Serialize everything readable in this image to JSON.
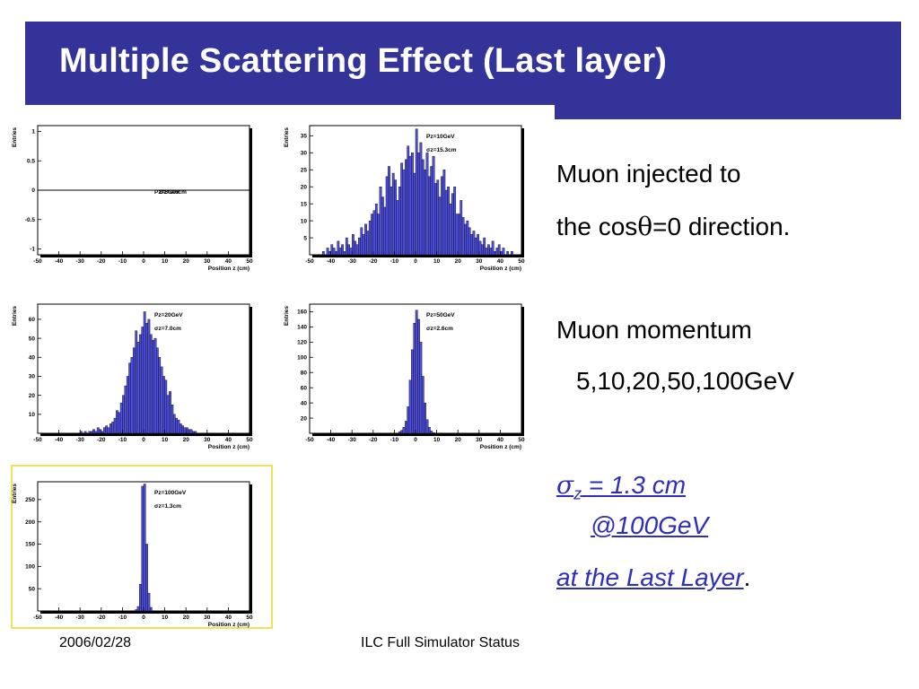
{
  "slide": {
    "title": "Multiple Scattering Effect (Last layer)",
    "accent_color": "#333399",
    "link_color": "#2e2eb8",
    "highlight_color": "#f2e25a",
    "footer_date": "2006/02/28",
    "footer_center": "ILC Full Simulator Status"
  },
  "text": {
    "line1": "Muon injected to",
    "line2_pre": "the cos",
    "line2_theta": "θ",
    "line2_post": "=0 direction.",
    "line3": "Muon momentum",
    "line4": "5,10,20,50,100GeV",
    "sigma_symbol": "σ",
    "sigma_sub": "z",
    "sigma_value": " = 1.3 cm",
    "sigma_at": "@100GeV",
    "last_layer": "at the Last Layer",
    "period": "."
  },
  "chart_data": [
    {
      "type": "bar",
      "xlabel": "Position z (cm)",
      "ylabel": "Entries",
      "xlim": [
        -50,
        50
      ],
      "ylim": [
        -1.1,
        1.1
      ],
      "xticks": [
        -50,
        -40,
        -30,
        -20,
        -10,
        0,
        10,
        20,
        30,
        40,
        50
      ],
      "yticks": [
        -1,
        -0.5,
        0,
        0.5,
        1
      ],
      "annotation_line1": "Pz=5GeV",
      "annotation_line2": "σz=0.0cm",
      "bin_width": 2,
      "x": [],
      "values": []
    },
    {
      "type": "bar",
      "xlabel": "Position z (cm)",
      "ylabel": "Entries",
      "xlim": [
        -50,
        50
      ],
      "ylim": [
        0,
        38
      ],
      "xticks": [
        -50,
        -40,
        -30,
        -20,
        -10,
        0,
        10,
        20,
        30,
        40,
        50
      ],
      "yticks": [
        5,
        10,
        15,
        20,
        25,
        30,
        35
      ],
      "annotation_line1": "Pz=10GeV",
      "annotation_line2": "σz=15.3cm",
      "bin_width": 1,
      "x": [
        -44,
        -43,
        -42,
        -41,
        -40,
        -39,
        -38,
        -37,
        -36,
        -35,
        -34,
        -33,
        -32,
        -31,
        -30,
        -29,
        -28,
        -27,
        -26,
        -25,
        -24,
        -23,
        -22,
        -21,
        -20,
        -19,
        -18,
        -17,
        -16,
        -15,
        -14,
        -13,
        -12,
        -11,
        -10,
        -9,
        -8,
        -7,
        -6,
        -5,
        -4,
        -3,
        -2,
        -1,
        0,
        1,
        2,
        3,
        4,
        5,
        6,
        7,
        8,
        9,
        10,
        11,
        12,
        13,
        14,
        15,
        16,
        17,
        18,
        19,
        20,
        21,
        22,
        23,
        24,
        25,
        26,
        27,
        28,
        29,
        30,
        31,
        32,
        33,
        34,
        35,
        36,
        37,
        38,
        39,
        40,
        41,
        42,
        43,
        44,
        45
      ],
      "values": [
        1,
        0,
        2,
        1,
        3,
        2,
        1,
        4,
        2,
        3,
        1,
        5,
        3,
        2,
        6,
        4,
        3,
        5,
        8,
        6,
        9,
        7,
        10,
        12,
        13,
        15,
        12,
        20,
        17,
        14,
        23,
        26,
        20,
        24,
        22,
        16,
        20,
        27,
        25,
        28,
        32,
        29,
        30,
        24,
        37,
        30,
        33,
        28,
        25,
        30,
        23,
        26,
        29,
        21,
        22,
        17,
        23,
        25,
        19,
        20,
        15,
        18,
        20,
        12,
        12,
        16,
        11,
        9,
        10,
        8,
        6,
        7,
        5,
        6,
        4,
        3,
        5,
        2,
        3,
        2,
        4,
        1,
        2,
        3,
        1,
        2,
        0,
        1,
        0,
        1
      ]
    },
    {
      "type": "bar",
      "xlabel": "Position z (cm)",
      "ylabel": "Entries",
      "xlim": [
        -50,
        50
      ],
      "ylim": [
        0,
        68
      ],
      "xticks": [
        -50,
        -40,
        -30,
        -20,
        -10,
        0,
        10,
        20,
        30,
        40,
        50
      ],
      "yticks": [
        10,
        20,
        30,
        40,
        50,
        60
      ],
      "annotation_line1": "Pz=20GeV",
      "annotation_line2": "σz=7.0cm",
      "bin_width": 1,
      "x": [
        -30,
        -29,
        -28,
        -27,
        -26,
        -25,
        -24,
        -23,
        -22,
        -21,
        -20,
        -19,
        -18,
        -17,
        -16,
        -15,
        -14,
        -13,
        -12,
        -11,
        -10,
        -9,
        -8,
        -7,
        -6,
        -5,
        -4,
        -3,
        -2,
        -1,
        0,
        1,
        2,
        3,
        4,
        5,
        6,
        7,
        8,
        9,
        10,
        11,
        12,
        13,
        14,
        15,
        16,
        17,
        18,
        19,
        20,
        21,
        22,
        23,
        24
      ],
      "values": [
        1,
        0,
        1,
        0,
        1,
        1,
        2,
        1,
        3,
        2,
        1,
        3,
        4,
        3,
        5,
        6,
        8,
        12,
        11,
        16,
        20,
        25,
        30,
        37,
        40,
        45,
        54,
        48,
        52,
        56,
        64,
        58,
        60,
        52,
        49,
        50,
        45,
        40,
        35,
        30,
        28,
        20,
        22,
        15,
        10,
        8,
        7,
        5,
        4,
        3,
        3,
        2,
        2,
        1,
        1
      ]
    },
    {
      "type": "bar",
      "xlabel": "Position z (cm)",
      "ylabel": "Entries",
      "xlim": [
        -50,
        50
      ],
      "ylim": [
        0,
        170
      ],
      "xticks": [
        -50,
        -40,
        -30,
        -20,
        -10,
        0,
        10,
        20,
        30,
        40,
        50
      ],
      "yticks": [
        20,
        40,
        60,
        80,
        100,
        120,
        140,
        160
      ],
      "annotation_line1": "Pz=50GeV",
      "annotation_line2": "σz=2.6cm",
      "bin_width": 1,
      "x": [
        -8,
        -7,
        -6,
        -5,
        -4,
        -3,
        -2,
        -1,
        0,
        1,
        2,
        3,
        4,
        5,
        6,
        7,
        8
      ],
      "values": [
        2,
        4,
        8,
        16,
        35,
        70,
        110,
        145,
        162,
        150,
        120,
        75,
        40,
        18,
        8,
        3,
        1
      ]
    },
    {
      "type": "bar",
      "xlabel": "Position z (cm)",
      "ylabel": "Entries",
      "xlim": [
        -50,
        50
      ],
      "ylim": [
        0,
        290
      ],
      "xticks": [
        -50,
        -40,
        -30,
        -20,
        -10,
        0,
        10,
        20,
        30,
        40,
        50
      ],
      "yticks": [
        50,
        100,
        150,
        200,
        250
      ],
      "annotation_line1": "Pz=100GeV",
      "annotation_line2": "σz=1.3cm",
      "bin_width": 1,
      "x": [
        -4,
        -3,
        -2,
        -1,
        0,
        1,
        2,
        3
      ],
      "values": [
        3,
        10,
        60,
        280,
        285,
        150,
        40,
        8
      ]
    }
  ]
}
